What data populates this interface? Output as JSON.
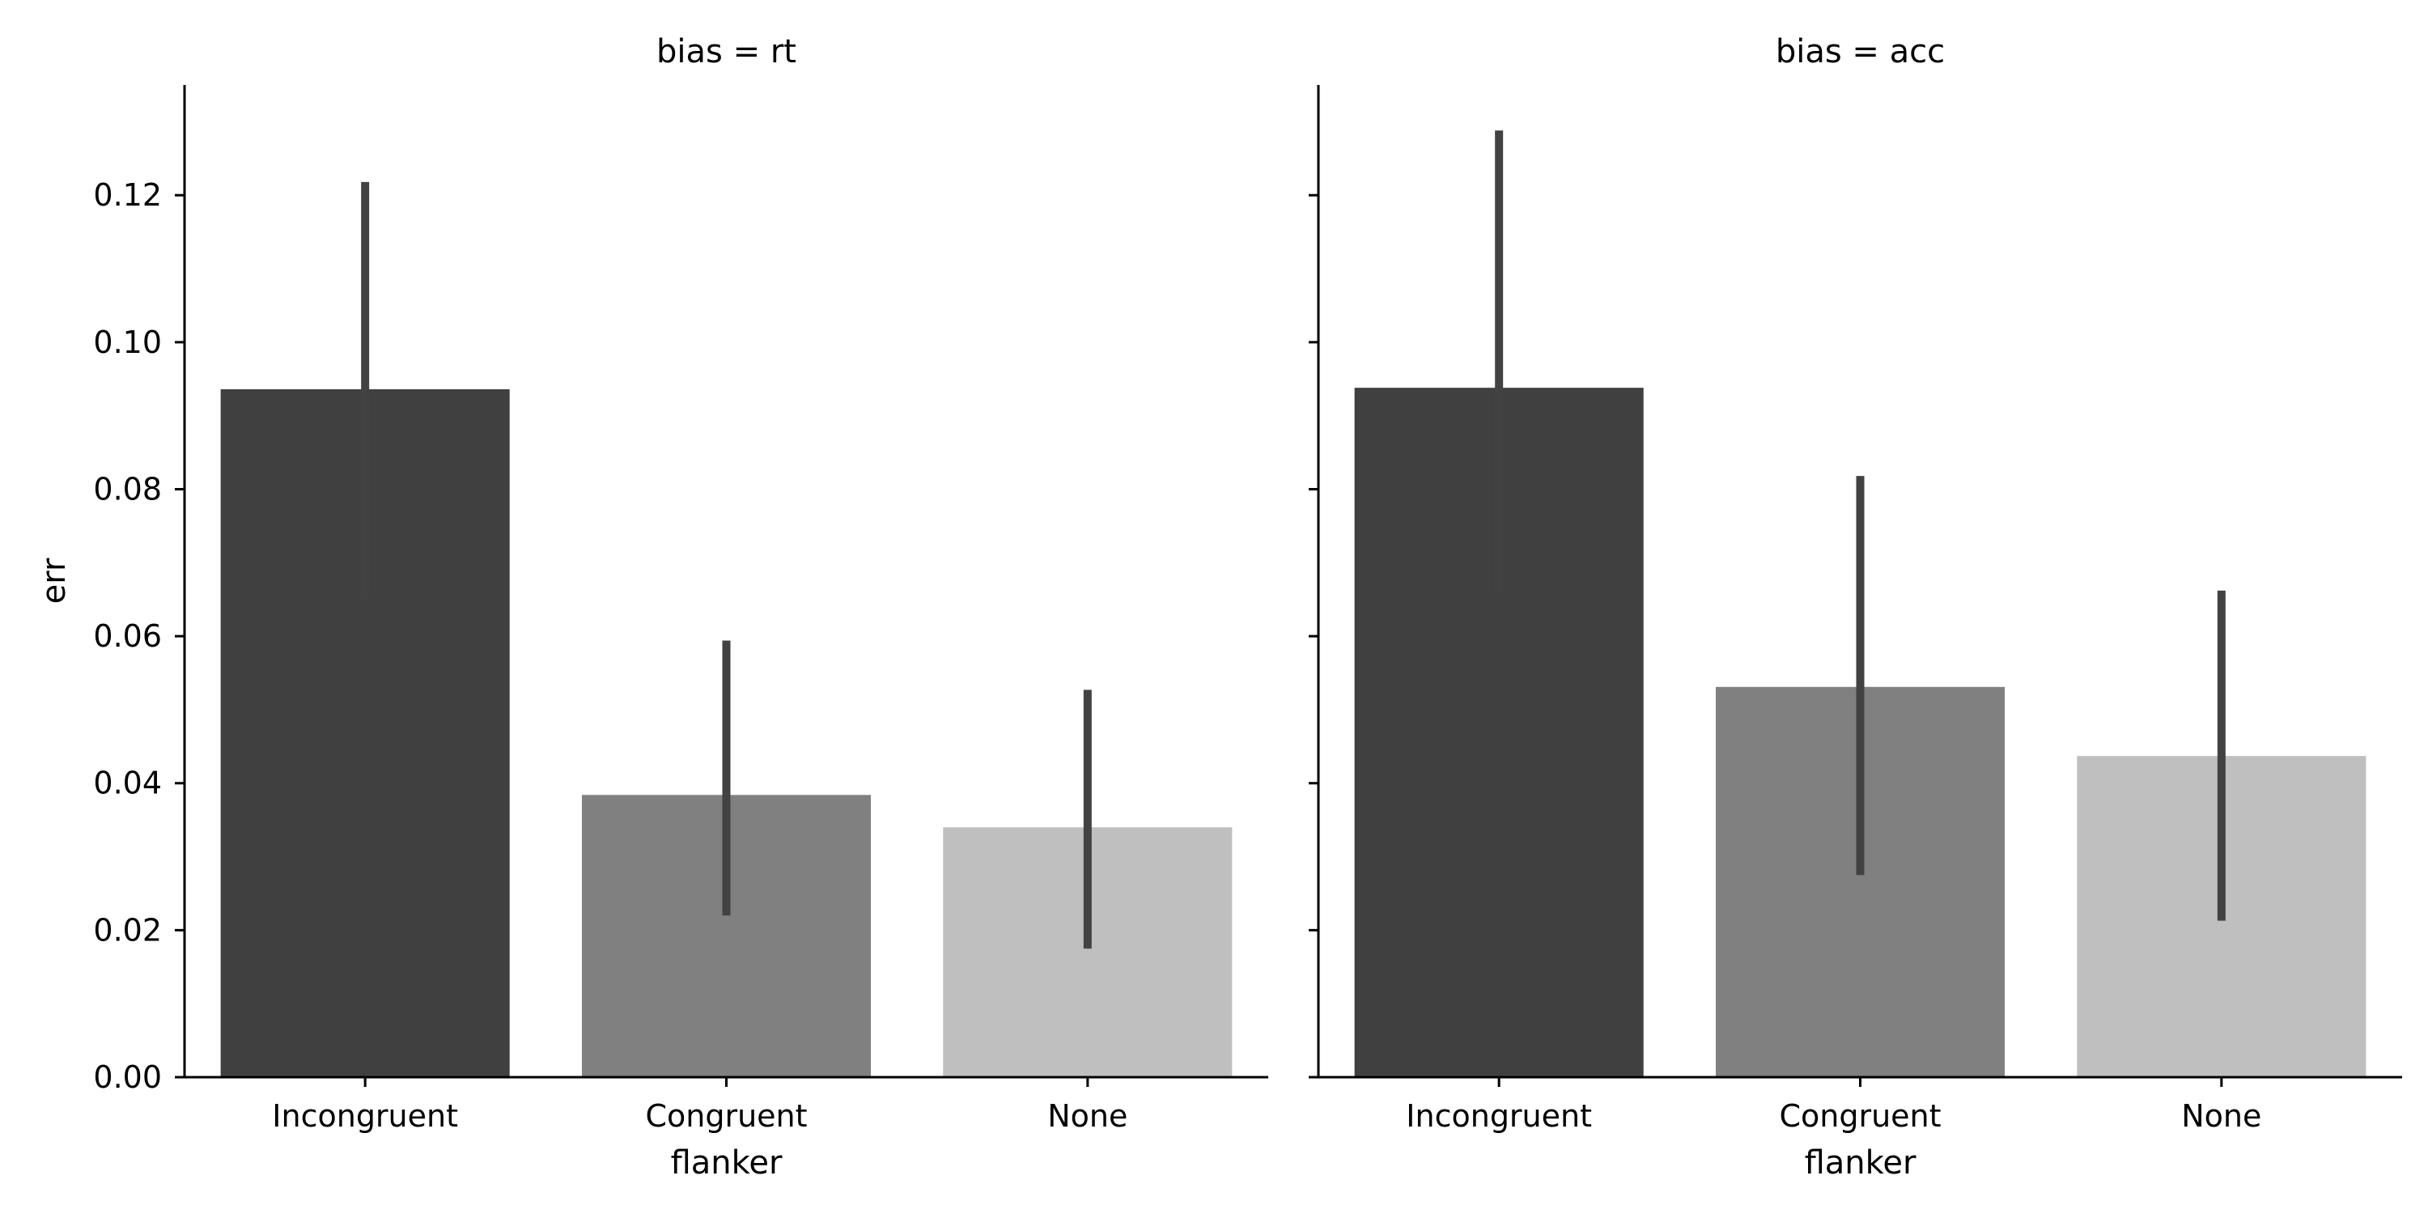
{
  "chart_data": {
    "type": "bar",
    "categories": [
      "Incongruent",
      "Congruent",
      "None"
    ],
    "xlabel": "flanker",
    "ylabel": "err",
    "ylim": [
      0,
      0.135
    ],
    "yticks": [
      "0.00",
      "0.02",
      "0.04",
      "0.06",
      "0.08",
      "0.10",
      "0.12"
    ],
    "grid": false,
    "colors": [
      "#404040",
      "#808080",
      "#bfbfbf"
    ],
    "errorbar_color": "#424242",
    "panels": [
      {
        "title": "bias = rt",
        "values": [
          0.0936,
          0.0384,
          0.034
        ],
        "ci_low": [
          0.065,
          0.022,
          0.0175
        ],
        "ci_high": [
          0.1218,
          0.0594,
          0.0527
        ]
      },
      {
        "title": "bias = acc",
        "values": [
          0.0938,
          0.0531,
          0.0437
        ],
        "ci_low": [
          0.066,
          0.0275,
          0.0213
        ],
        "ci_high": [
          0.1288,
          0.0818,
          0.0662
        ]
      }
    ]
  }
}
